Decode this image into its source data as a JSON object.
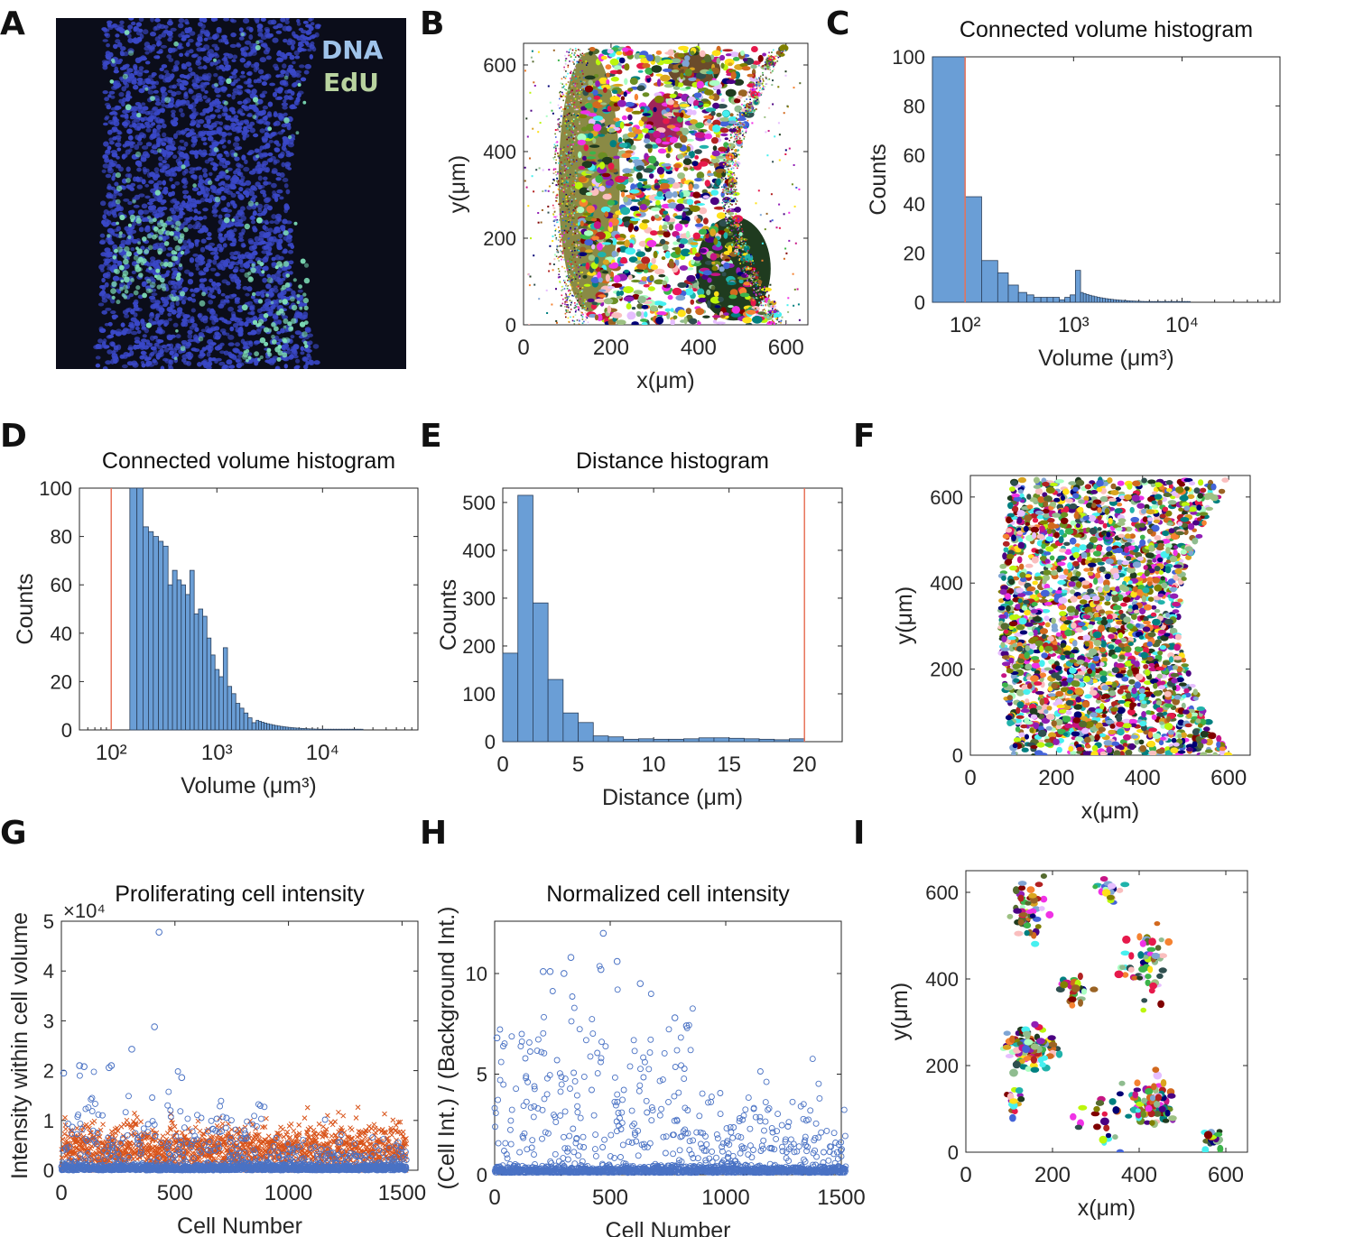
{
  "panel_letters": [
    "A",
    "B",
    "C",
    "D",
    "E",
    "F",
    "G",
    "H",
    "I"
  ],
  "micrograph": {
    "labels": [
      "DNA",
      "EdU"
    ],
    "colors": {
      "dna": "#9fc3ea",
      "edu": "#b9d3a0",
      "nuclei": "#3a48c8",
      "edu_cells": "#7fe0b8"
    }
  },
  "colors": {
    "bar_fill": "#6a9ed6",
    "bar_edge": "#2b3f5a",
    "threshold_line": "#e8735a",
    "blue_marker": "#4a72c4",
    "orange_marker": "#d9541a"
  },
  "chart_data": [
    {
      "panel": "B",
      "type": "scatter",
      "title": "",
      "xlabel": "x(μm)",
      "ylabel": "y(μm)",
      "xlim": [
        0,
        650
      ],
      "ylim": [
        0,
        650
      ],
      "xticks": [
        "0",
        "200",
        "400",
        "600"
      ],
      "yticks": [
        "0",
        "200",
        "400",
        "600"
      ],
      "description_note": "segmented connected volumes, colored regions"
    },
    {
      "panel": "C",
      "type": "bar",
      "title": "Connected volume histogram",
      "xlabel": "Volume (μm³)",
      "ylabel": "Counts",
      "xscale": "log",
      "xlim": [
        50,
        80000
      ],
      "ylim": [
        0,
        100
      ],
      "xticks": [
        "10²",
        "10³",
        "10⁴"
      ],
      "yticks": [
        "0",
        "20",
        "40",
        "60",
        "80",
        "100"
      ],
      "threshold": 100,
      "bin_edges": [
        50,
        100,
        142,
        200,
        250,
        310,
        370,
        430,
        500,
        570,
        650,
        740,
        830,
        930,
        1040,
        1160
      ],
      "values": [
        100,
        43,
        17,
        12,
        7,
        4,
        3,
        2,
        2,
        2,
        2,
        1,
        2,
        3,
        13,
        8
      ]
    },
    {
      "panel": "D",
      "type": "bar",
      "title": "Connected volume histogram",
      "xlabel": "Volume (μm³)",
      "ylabel": "Counts",
      "xscale": "log",
      "xlim": [
        50,
        80000
      ],
      "ylim": [
        0,
        100
      ],
      "xticks": [
        "10²",
        "10³",
        "10⁴"
      ],
      "yticks": [
        "0",
        "20",
        "40",
        "60",
        "80",
        "100"
      ],
      "threshold": 100,
      "bin_edges": [
        150,
        175,
        200,
        225,
        250,
        280,
        310,
        345,
        380,
        420,
        460,
        505,
        555,
        610,
        670,
        735,
        805,
        880,
        960,
        1050,
        1150,
        1260,
        1380,
        1510,
        1650,
        1800,
        1970,
        2150,
        2350
      ],
      "values": [
        100,
        100,
        84,
        82,
        80,
        78,
        76,
        60,
        66,
        62,
        60,
        56,
        66,
        48,
        50,
        47,
        38,
        31,
        25,
        22,
        34,
        18,
        15,
        11,
        9,
        7,
        5,
        3
      ]
    },
    {
      "panel": "E",
      "type": "bar",
      "title": "Distance histogram",
      "xlabel": "Distance (μm)",
      "ylabel": "Counts",
      "xlim": [
        0,
        22.5
      ],
      "ylim": [
        0,
        530
      ],
      "xticks": [
        "0",
        "5",
        "10",
        "15",
        "20"
      ],
      "yticks": [
        "0",
        "100",
        "200",
        "300",
        "400",
        "500"
      ],
      "threshold": 20,
      "bin_edges": [
        0,
        1,
        2,
        3,
        4,
        5,
        6,
        7,
        8,
        9,
        10,
        11,
        12,
        13,
        14,
        15,
        16,
        17,
        18,
        19,
        20
      ],
      "values": [
        185,
        515,
        290,
        130,
        60,
        40,
        12,
        10,
        5,
        6,
        5,
        5,
        6,
        8,
        8,
        7,
        6,
        5,
        4,
        6
      ]
    },
    {
      "panel": "F",
      "type": "scatter",
      "title": "",
      "xlabel": "x(μm)",
      "ylabel": "y(μm)",
      "xlim": [
        0,
        650
      ],
      "ylim": [
        0,
        650
      ],
      "xticks": [
        "0",
        "200",
        "400",
        "600"
      ],
      "yticks": [
        "0",
        "200",
        "400",
        "600"
      ],
      "description_note": "all segmented nuclei"
    },
    {
      "panel": "G",
      "type": "scatter",
      "title": "Proliferating cell intensity",
      "xlabel": "Cell Number",
      "ylabel": "Intensity within cell volume",
      "xlim": [
        0,
        1570
      ],
      "ylim": [
        0,
        50000
      ],
      "y_multiplier": "×10⁴",
      "xticks": [
        "0",
        "500",
        "1000",
        "1500"
      ],
      "yticks": [
        "0",
        "1",
        "2",
        "3",
        "4",
        "5"
      ],
      "n_points": 1520,
      "outliers": [
        {
          "x": 10,
          "y": 19500
        },
        {
          "x": 430,
          "y": 47800
        },
        {
          "x": 410,
          "y": 28800
        },
        {
          "x": 310,
          "y": 24300
        },
        {
          "x": 80,
          "y": 21000
        },
        {
          "x": 100,
          "y": 20800
        },
        {
          "x": 210,
          "y": 20600
        },
        {
          "x": 220,
          "y": 21000
        },
        {
          "x": 530,
          "y": 18600
        }
      ]
    },
    {
      "panel": "H",
      "type": "scatter",
      "title": "Normalized cell intensity",
      "xlabel": "Cell Number",
      "ylabel": "(Cell Int.) / (Background Int.)",
      "xlim": [
        0,
        1500
      ],
      "ylim": [
        0,
        12.6
      ],
      "xticks": [
        "0",
        "500",
        "1000",
        "1500"
      ],
      "yticks": [
        "0",
        "5",
        "10"
      ],
      "n_points": 1520,
      "outliers": [
        {
          "x": 470,
          "y": 12.0
        },
        {
          "x": 330,
          "y": 10.8
        },
        {
          "x": 530,
          "y": 10.6
        },
        {
          "x": 210,
          "y": 10.1
        },
        {
          "x": 240,
          "y": 10.1
        },
        {
          "x": 460,
          "y": 10.2
        },
        {
          "x": 300,
          "y": 10.0
        },
        {
          "x": 630,
          "y": 9.5
        },
        {
          "x": 10,
          "y": 6.8
        },
        {
          "x": 780,
          "y": 7.8
        },
        {
          "x": 830,
          "y": 7.4
        }
      ]
    },
    {
      "panel": "I",
      "type": "scatter",
      "title": "",
      "xlabel": "x(μm)",
      "ylabel": "y(μm)",
      "xlim": [
        0,
        650
      ],
      "ylim": [
        0,
        650
      ],
      "xticks": [
        "0",
        "200",
        "400",
        "600"
      ],
      "yticks": [
        "0",
        "200",
        "400",
        "600"
      ],
      "description_note": "proliferating (EdU+) nuclei"
    }
  ]
}
